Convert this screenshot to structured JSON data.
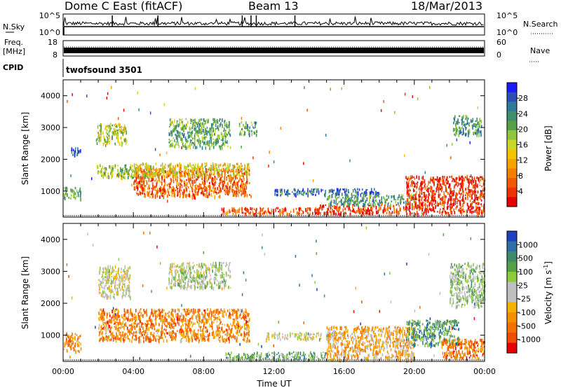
{
  "header": {
    "title": "Dome C East (fitACF)",
    "beam": "Beam 13",
    "date": "18/Mar/2013"
  },
  "time_panels": {
    "nsky": {
      "label": "N.Sky",
      "right_label": "N.Search",
      "left_ticks": [
        "10^5",
        "10^0"
      ],
      "right_ticks": [
        "10^5",
        "10^0"
      ]
    },
    "freq": {
      "label_line1": "Freq.",
      "label_line2": "[MHz]",
      "right_label": "Nave",
      "left_ticks": [
        "18",
        "8"
      ],
      "right_ticks": [
        "60",
        "0"
      ]
    },
    "cpid": {
      "label": "CPID",
      "program": "twofsound 3501"
    }
  },
  "chart_data": [
    {
      "type": "heatmap",
      "name": "Power",
      "ylabel": "Slant Range [km]",
      "xlabel": "",
      "x_ticks": [
        "00:00",
        "04:00",
        "08:00",
        "12:00",
        "16:00",
        "20:00",
        "00:00"
      ],
      "x_range_hours": [
        0,
        24
      ],
      "y_ticks": [
        1000,
        2000,
        3000,
        4000
      ],
      "ylim": [
        180,
        4500
      ],
      "colorbar": {
        "label": "Power [dB]",
        "ticks": [
          "4",
          "8",
          "12",
          "16",
          "20",
          "24",
          "28"
        ],
        "colors": [
          "#1a1aff",
          "#2b4fb3",
          "#2f7a9a",
          "#3f8f6f",
          "#56a046",
          "#8ec63f",
          "#c9d62a",
          "#f5c400",
          "#f5a300",
          "#f57f00",
          "#f25a00",
          "#ee3300",
          "#e60000"
        ]
      },
      "regions": [
        {
          "t0": 0.0,
          "t1": 1.0,
          "r0": 780,
          "r1": 1150,
          "level": 0.35
        },
        {
          "t0": 0.4,
          "t1": 1.0,
          "r0": 2150,
          "r1": 2400,
          "level": 0.15
        },
        {
          "t0": 1.8,
          "t1": 3.6,
          "r0": 2500,
          "r1": 3150,
          "level": 0.45
        },
        {
          "t0": 1.9,
          "t1": 5.0,
          "r0": 1450,
          "r1": 1850,
          "level": 0.45
        },
        {
          "t0": 4.0,
          "t1": 10.6,
          "r0": 850,
          "r1": 1750,
          "level": 0.8
        },
        {
          "t0": 4.0,
          "t1": 10.6,
          "r0": 1500,
          "r1": 1900,
          "level": 0.55
        },
        {
          "t0": 6.0,
          "t1": 9.5,
          "r0": 2400,
          "r1": 3300,
          "level": 0.35
        },
        {
          "t0": 10.0,
          "t1": 11.0,
          "r0": 2800,
          "r1": 3200,
          "level": 0.3
        },
        {
          "t0": 9.0,
          "t1": 14.5,
          "r0": 300,
          "r1": 500,
          "level": 0.85
        },
        {
          "t0": 12.0,
          "t1": 18.0,
          "r0": 900,
          "r1": 1100,
          "level": 0.15
        },
        {
          "t0": 14.5,
          "t1": 19.5,
          "r0": 300,
          "r1": 600,
          "level": 0.9
        },
        {
          "t0": 15.0,
          "t1": 20.0,
          "r0": 600,
          "r1": 900,
          "level": 0.3
        },
        {
          "t0": 19.5,
          "t1": 24.0,
          "r0": 300,
          "r1": 1500,
          "level": 0.9
        },
        {
          "t0": 22.2,
          "t1": 23.8,
          "r0": 2800,
          "r1": 3400,
          "level": 0.3
        }
      ]
    },
    {
      "type": "heatmap",
      "name": "Velocity",
      "ylabel": "Slant Range [km]",
      "xlabel": "Time UT",
      "x_ticks": [
        "00:00",
        "04:00",
        "08:00",
        "12:00",
        "16:00",
        "20:00",
        "00:00"
      ],
      "x_range_hours": [
        0,
        24
      ],
      "y_ticks": [
        1000,
        2000,
        3000,
        4000
      ],
      "ylim": [
        180,
        4500
      ],
      "colorbar": {
        "label": "Velocity [m s-1]",
        "label_main": "Velocity [m s",
        "label_exp": "-1",
        "label_tail": "]",
        "ticks": [
          "1000",
          "500",
          "100",
          "25",
          "-25",
          "-100",
          "-500",
          "-1000"
        ],
        "colors": [
          "#1f3fbf",
          "#2f6fa8",
          "#3f8a6a",
          "#56a046",
          "#8ccc3a",
          "#bfbfbf",
          "#bfbfbf",
          "#f5b000",
          "#f59000",
          "#f56f00",
          "#f04d00",
          "#e60000"
        ]
      },
      "regions": [
        {
          "t0": 0.0,
          "t1": 1.0,
          "r0": 500,
          "r1": 1100,
          "level": 0.7
        },
        {
          "t0": 2.0,
          "t1": 3.8,
          "r0": 2200,
          "r1": 3200,
          "level": 0.5
        },
        {
          "t0": 2.0,
          "t1": 10.6,
          "r0": 850,
          "r1": 1850,
          "level": 0.75
        },
        {
          "t0": 6.0,
          "t1": 9.5,
          "r0": 2500,
          "r1": 3300,
          "level": 0.45
        },
        {
          "t0": 9.2,
          "t1": 15.0,
          "r0": 250,
          "r1": 500,
          "level": 0.3
        },
        {
          "t0": 11.5,
          "t1": 15.5,
          "r0": 900,
          "r1": 1100,
          "level": 0.5
        },
        {
          "t0": 15.0,
          "t1": 20.0,
          "r0": 250,
          "r1": 1300,
          "level": 0.65
        },
        {
          "t0": 19.5,
          "t1": 22.5,
          "r0": 700,
          "r1": 1500,
          "level": 0.25
        },
        {
          "t0": 21.5,
          "t1": 24.0,
          "r0": 300,
          "r1": 900,
          "level": 0.8
        },
        {
          "t0": 22.0,
          "t1": 24.0,
          "r0": 1900,
          "r1": 3300,
          "level": 0.4
        }
      ]
    }
  ]
}
